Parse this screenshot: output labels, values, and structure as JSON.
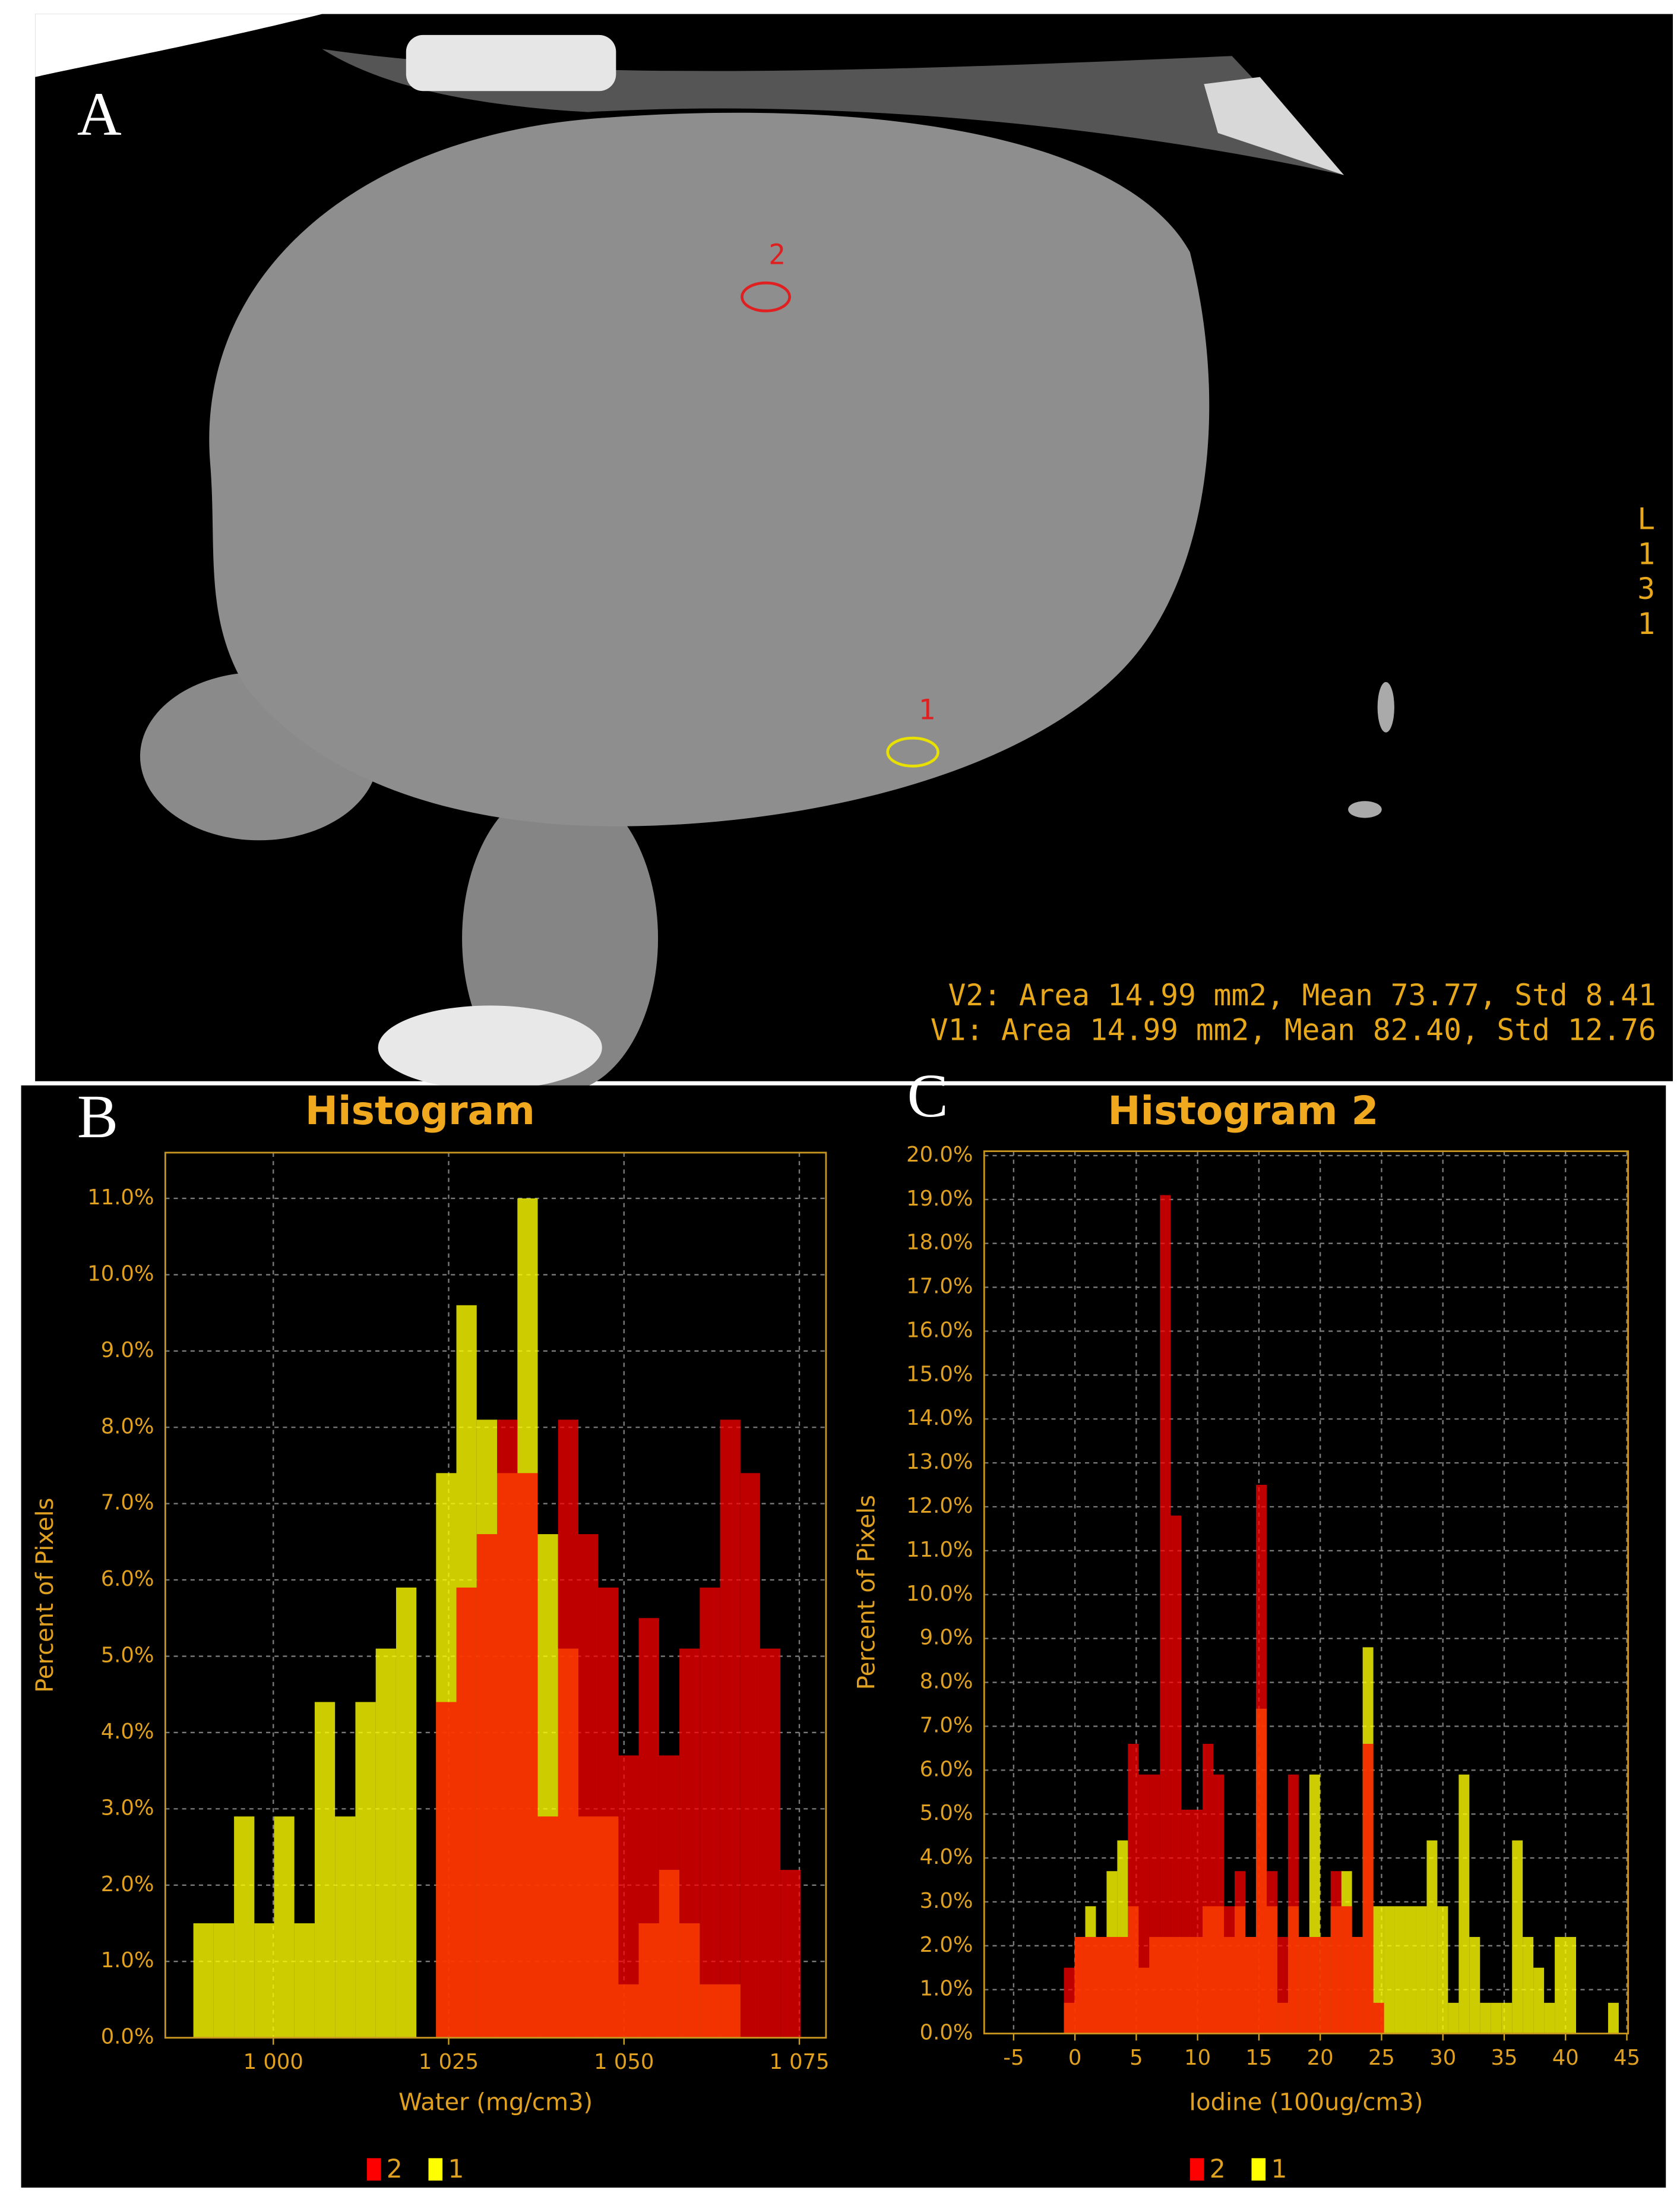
{
  "figure": {
    "panel_labels": [
      "A",
      "B",
      "C"
    ]
  },
  "ct_image": {
    "roi_labels": [
      "2",
      "1"
    ],
    "side_label": [
      "L",
      "1",
      "3",
      "1"
    ],
    "measurements": [
      "V2: Area 14.99 mm2, Mean 73.77, Std 8.41",
      "V1: Area 14.99 mm2, Mean 82.40, Std 12.76"
    ]
  },
  "chart_data": [
    {
      "type": "histogram",
      "title": "Histogram",
      "x_label": "Water (mg/cm3)",
      "y_label": "Percent of Pixels",
      "bins": [
        988.6,
        991.5,
        994.4,
        997.3,
        1000.1,
        1003.0,
        1005.9,
        1008.8,
        1011.7,
        1014.6,
        1017.5,
        1020.4,
        1023.2,
        1026.1,
        1029.0,
        1031.9,
        1034.8,
        1037.7,
        1040.6,
        1043.5,
        1046.3,
        1049.2,
        1052.1,
        1055.0,
        1057.9,
        1060.8,
        1063.7,
        1066.6,
        1069.4,
        1072.3,
        1075.2
      ],
      "series": [
        {
          "name": "2",
          "color": "#ff0000",
          "values": [
            0,
            0,
            0,
            0,
            0,
            0,
            0,
            0,
            0,
            0,
            0,
            0,
            4.4,
            5.9,
            6.6,
            8.1,
            7.4,
            2.9,
            8.1,
            6.6,
            5.9,
            3.7,
            5.5,
            3.7,
            5.1,
            5.9,
            8.1,
            7.4,
            5.1,
            2.2
          ]
        },
        {
          "name": "1",
          "color": "#ffff00",
          "values": [
            1.5,
            1.5,
            2.9,
            1.5,
            2.9,
            1.5,
            4.4,
            2.9,
            4.4,
            5.1,
            5.9,
            0,
            7.4,
            9.6,
            8.1,
            7.4,
            11.0,
            6.6,
            5.1,
            2.9,
            2.9,
            0.7,
            1.5,
            2.2,
            1.5,
            0.7,
            0.7,
            0,
            0,
            0
          ]
        }
      ],
      "xlim": [
        984.6,
        1078.8
      ],
      "xticks": [
        {
          "value": 1000,
          "label": "1 000"
        },
        {
          "value": 1025,
          "label": "1 025"
        },
        {
          "value": 1050,
          "label": "1 050"
        },
        {
          "value": 1075,
          "label": "1 075"
        }
      ],
      "ylim": [
        0,
        11.6
      ],
      "yticks": [
        {
          "value": 0,
          "label": "0.0%"
        },
        {
          "value": 1,
          "label": "1.0%"
        },
        {
          "value": 2,
          "label": "2.0%"
        },
        {
          "value": 3,
          "label": "3.0%"
        },
        {
          "value": 4,
          "label": "4.0%"
        },
        {
          "value": 5,
          "label": "5.0%"
        },
        {
          "value": 6,
          "label": "6.0%"
        },
        {
          "value": 7,
          "label": "7.0%"
        },
        {
          "value": 8,
          "label": "8.0%"
        },
        {
          "value": 9,
          "label": "9.0%"
        },
        {
          "value": 10,
          "label": "10.0%"
        },
        {
          "value": 11,
          "label": "11.0%"
        }
      ],
      "grid": true
    },
    {
      "type": "histogram",
      "title": "Histogram 2",
      "x_label": "Iodine (100ug/cm3)",
      "y_label": "Percent of Pixels",
      "bins": [
        -0.9,
        -0.03,
        0.84,
        1.71,
        2.58,
        3.45,
        4.32,
        5.19,
        6.06,
        6.93,
        7.8,
        8.67,
        9.54,
        10.41,
        11.28,
        12.15,
        13.02,
        13.89,
        14.76,
        15.63,
        16.5,
        17.37,
        18.24,
        19.11,
        19.98,
        20.85,
        21.72,
        22.59,
        23.46,
        24.33,
        25.2,
        26.07,
        26.94,
        27.81,
        28.68,
        29.55,
        30.42,
        31.29,
        32.16,
        33.03,
        33.9,
        34.77,
        35.64,
        36.51,
        37.38,
        38.25,
        39.12,
        39.99,
        40.86,
        41.73,
        42.6,
        43.47,
        44.34
      ],
      "series": [
        {
          "name": "2",
          "color": "#ff0000",
          "values": [
            1.5,
            2.2,
            2.2,
            2.2,
            2.2,
            2.2,
            6.6,
            5.9,
            5.9,
            19.1,
            11.8,
            5.1,
            5.1,
            6.6,
            5.9,
            2.9,
            3.7,
            2.2,
            12.5,
            3.7,
            2.2,
            5.9,
            2.2,
            2.2,
            2.2,
            3.7,
            2.9,
            2.2,
            6.6,
            0.7,
            0,
            0,
            0,
            0,
            0,
            0,
            0,
            0,
            0,
            0,
            0,
            0,
            0,
            0,
            0,
            0,
            0,
            0,
            0,
            0,
            0,
            0
          ]
        },
        {
          "name": "1",
          "color": "#ffff00",
          "values": [
            0.7,
            2.2,
            2.9,
            2.2,
            3.7,
            4.4,
            2.9,
            1.5,
            2.2,
            2.2,
            2.2,
            2.2,
            2.2,
            2.9,
            2.9,
            2.2,
            2.9,
            2.2,
            7.4,
            2.9,
            0.7,
            2.9,
            2.2,
            5.9,
            2.2,
            2.9,
            3.7,
            2.2,
            8.8,
            2.9,
            2.9,
            2.9,
            2.9,
            2.9,
            4.4,
            2.9,
            0.7,
            5.9,
            2.2,
            0.7,
            0.7,
            0.7,
            4.4,
            2.2,
            1.5,
            0.7,
            2.2,
            2.2,
            0,
            0,
            0,
            0.7
          ]
        }
      ],
      "xlim": [
        -7.4,
        45.1
      ],
      "xticks": [
        -5,
        0,
        5,
        10,
        15,
        20,
        25,
        30,
        35,
        40,
        45
      ],
      "ylim": [
        0,
        20.1
      ],
      "yticks": [
        {
          "value": 0,
          "label": "0.0%"
        },
        {
          "value": 1,
          "label": "1.0%"
        },
        {
          "value": 2,
          "label": "2.0%"
        },
        {
          "value": 3,
          "label": "3.0%"
        },
        {
          "value": 4,
          "label": "4.0%"
        },
        {
          "value": 5,
          "label": "5.0%"
        },
        {
          "value": 6,
          "label": "6.0%"
        },
        {
          "value": 7,
          "label": "7.0%"
        },
        {
          "value": 8,
          "label": "8.0%"
        },
        {
          "value": 9,
          "label": "9.0%"
        },
        {
          "value": 10,
          "label": "10.0%"
        },
        {
          "value": 11,
          "label": "11.0%"
        },
        {
          "value": 12,
          "label": "12.0%"
        },
        {
          "value": 13,
          "label": "13.0%"
        },
        {
          "value": 14,
          "label": "14.0%"
        },
        {
          "value": 15,
          "label": "15.0%"
        },
        {
          "value": 16,
          "label": "16.0%"
        },
        {
          "value": 17,
          "label": "17.0%"
        },
        {
          "value": 18,
          "label": "18.0%"
        },
        {
          "value": 19,
          "label": "19.0%"
        },
        {
          "value": 20,
          "label": "20.0%"
        }
      ],
      "grid": true
    }
  ]
}
